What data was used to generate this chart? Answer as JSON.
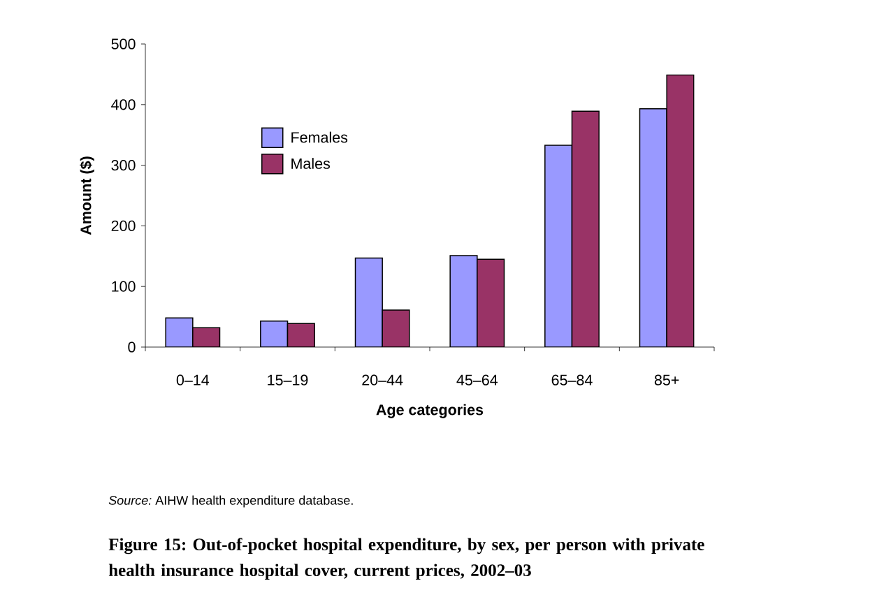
{
  "chart_data": {
    "type": "bar",
    "title": "Figure 15: Out-of-pocket hospital expenditure, by sex, per person with private health insurance hospital cover, current prices, 2002–03",
    "xlabel": "Age categories",
    "ylabel": "Amount ($)",
    "annotations": [
      "*Source:* AIHW health expenditure database."
    ],
    "categories": [
      "0–14",
      "15–19",
      "20–44",
      "45–64",
      "65–84",
      "85+"
    ],
    "series": [
      {
        "name": "Females",
        "color": "#9999ff",
        "values": [
          48,
          43,
          147,
          151,
          333,
          393
        ]
      },
      {
        "name": "Males",
        "color": "#993366",
        "values": [
          32,
          39,
          61,
          145,
          389,
          449
        ]
      }
    ],
    "ylim": [
      0,
      500
    ],
    "yticks": [
      0,
      100,
      200,
      300,
      400,
      500
    ],
    "legend": "top left"
  }
}
